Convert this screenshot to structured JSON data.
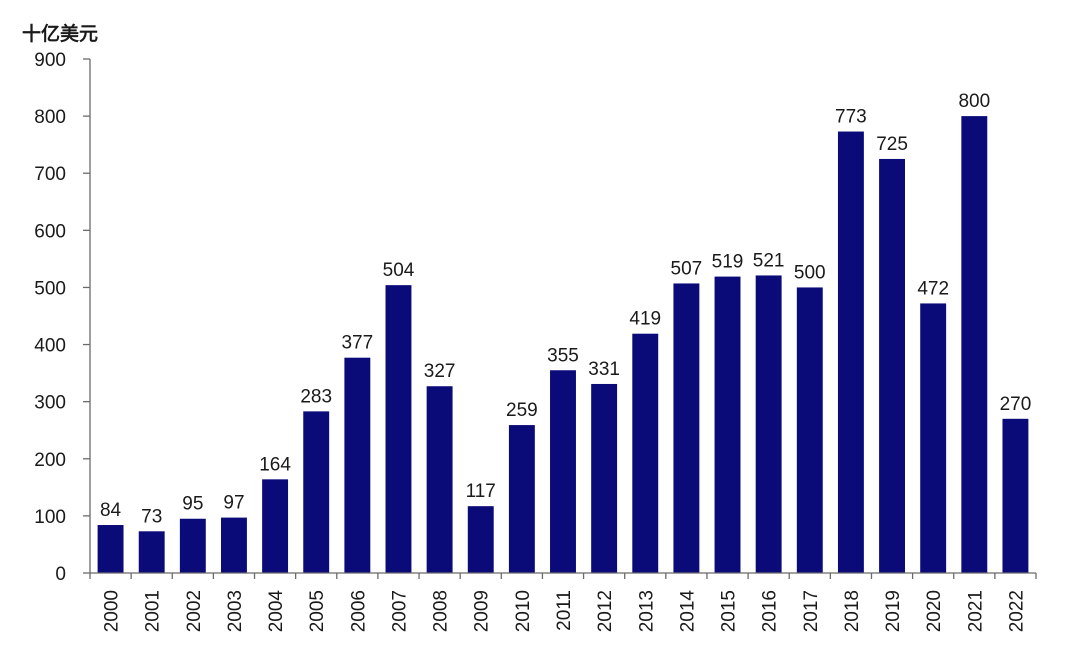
{
  "chart_data": {
    "type": "bar",
    "title": "",
    "ylabel": "十亿美元",
    "xlabel": "",
    "categories": [
      "2000",
      "2001",
      "2002",
      "2003",
      "2004",
      "2005",
      "2006",
      "2007",
      "2008",
      "2009",
      "2010",
      "2011",
      "2012",
      "2013",
      "2014",
      "2015",
      "2016",
      "2017",
      "2018",
      "2019",
      "2020",
      "2021",
      "2022"
    ],
    "series": [
      {
        "values": [
          84,
          73,
          95,
          97,
          164,
          283,
          377,
          504,
          327,
          117,
          259,
          355,
          331,
          419,
          507,
          519,
          521,
          500,
          773,
          725,
          472,
          800,
          270
        ],
        "color": "#0a0a78"
      }
    ],
    "ylim": [
      0,
      900
    ],
    "yticks": [
      0,
      100,
      200,
      300,
      400,
      500,
      600,
      700,
      800,
      900
    ],
    "grid": false,
    "legend": "none",
    "data_labels": true
  }
}
